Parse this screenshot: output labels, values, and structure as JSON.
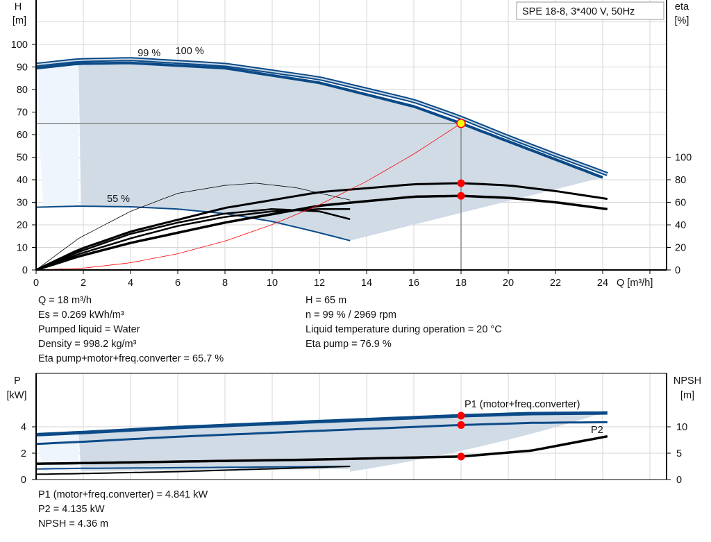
{
  "legend_box": "SPE 18-8, 3*400 V, 50Hz",
  "colors": {
    "curve_blue": "#0b4a87",
    "area": "#d0dbe6",
    "area_light": "#eef5fc",
    "eff_black": "#000000",
    "system_red": "#ff0000",
    "duty_point": "#ffff00",
    "grid": "#d4d4d4"
  },
  "chart_data": [
    {
      "type": "line",
      "title": "",
      "xlabel": "Q [m³/h]",
      "ylabel": "H\n[m]",
      "ylabel_right": "eta\n[%]",
      "xlim": [
        0,
        26
      ],
      "xticks": [
        0,
        2,
        4,
        6,
        8,
        10,
        12,
        14,
        16,
        18,
        20,
        22,
        24
      ],
      "ylim": [
        0,
        120
      ],
      "yticks": [
        0,
        10,
        20,
        30,
        40,
        50,
        60,
        70,
        80,
        90,
        100
      ],
      "ylim_right": [
        0,
        240
      ],
      "yticks_right": [
        0,
        20,
        40,
        60,
        80,
        100
      ],
      "grid": true,
      "axis_labels": {
        "h": "H",
        "h_unit": "[m]",
        "eta": "eta",
        "eta_unit": "[%]",
        "q": "Q [m³/h]"
      },
      "series": [
        {
          "name": "100 %",
          "axis": "H",
          "x": [
            0,
            1.8,
            4,
            8,
            12,
            16,
            18,
            20,
            22,
            24.2
          ],
          "y": [
            91,
            93,
            93.5,
            91,
            85,
            75,
            67.5,
            59,
            51,
            42.5
          ]
        },
        {
          "name": "99 %",
          "axis": "H",
          "x": [
            0,
            1.8,
            4,
            8,
            12,
            16,
            18,
            20,
            22,
            24
          ],
          "y": [
            89.5,
            91.5,
            91.8,
            89.5,
            83,
            72.5,
            65,
            57,
            49,
            41
          ]
        },
        {
          "name": "55 %",
          "axis": "H",
          "x": [
            0,
            1.8,
            4,
            6,
            8,
            10,
            12,
            13.3
          ],
          "y": [
            27.8,
            28.3,
            28,
            27,
            25,
            21.5,
            16.5,
            13
          ]
        },
        {
          "axis": "eta",
          "x": [
            0,
            1.8,
            4,
            8,
            12,
            16,
            18,
            20,
            22,
            24.2
          ],
          "y": [
            0,
            18,
            34,
            55,
            69,
            76,
            77,
            75,
            70,
            63
          ]
        },
        {
          "axis": "eta",
          "x": [
            0,
            1.8,
            4,
            8,
            12,
            16,
            18,
            20,
            22,
            24.2
          ],
          "y": [
            0,
            12,
            24,
            42,
            57,
            65,
            65.7,
            64,
            60,
            54
          ]
        },
        {
          "axis": "eta",
          "x": [
            0,
            1.8,
            4,
            6,
            8,
            9.3,
            11,
            13.3
          ],
          "y": [
            0,
            28,
            52,
            68,
            75,
            77,
            73,
            62
          ]
        },
        {
          "axis": "eta",
          "x": [
            0,
            1.8,
            4,
            6,
            8,
            10,
            12,
            13.3
          ],
          "y": [
            0,
            16,
            32,
            42,
            50,
            54,
            52,
            45
          ]
        },
        {
          "axis": "eta",
          "x": [
            0,
            1.8,
            4,
            6,
            8,
            10,
            12,
            13.3
          ],
          "y": [
            0,
            14,
            28,
            39,
            47,
            52,
            54,
            54
          ]
        },
        {
          "name": "system",
          "axis": "H",
          "x": [
            0,
            2,
            4,
            6,
            8,
            10,
            12,
            14,
            16,
            18
          ],
          "y": [
            0,
            0.8,
            3.2,
            7.2,
            12.8,
            20.1,
            28.9,
            39.3,
            51.4,
            65
          ]
        }
      ],
      "points": [
        {
          "label": "duty",
          "x": 18,
          "y": 65,
          "axis": "H"
        },
        {
          "x": 18,
          "y": 76.9,
          "axis": "eta"
        },
        {
          "x": 18,
          "y": 65.7,
          "axis": "eta"
        }
      ]
    },
    {
      "type": "line",
      "title": "",
      "ylabel": "P\n[kW]",
      "ylabel_right": "NPSH\n[m]",
      "xlim": [
        0,
        26
      ],
      "ylim": [
        0,
        8
      ],
      "yticks": [
        0,
        2,
        4
      ],
      "ylim_right": [
        0,
        21
      ],
      "yticks_right": [
        0,
        5,
        10
      ],
      "grid": true,
      "axis_labels": {
        "p": "P",
        "p_unit": "[kW]",
        "npsh": "NPSH",
        "npsh_unit": "[m]"
      },
      "series": [
        {
          "name": "P1 (motor+freq.converter)",
          "axis": "P",
          "x": [
            0,
            1.8,
            6,
            12,
            18,
            21,
            24.2
          ],
          "y": [
            3.4,
            3.55,
            3.95,
            4.4,
            4.84,
            5.0,
            5.05
          ]
        },
        {
          "name": "P2",
          "axis": "P",
          "x": [
            0,
            1.8,
            6,
            12,
            18,
            21,
            24.2
          ],
          "y": [
            2.7,
            2.85,
            3.25,
            3.7,
            4.135,
            4.3,
            4.35
          ]
        },
        {
          "axis": "NPSH",
          "x": [
            0,
            1.8,
            6,
            12,
            18,
            21,
            24.2
          ],
          "y": [
            3.0,
            3.1,
            3.4,
            3.8,
            4.36,
            5.5,
            8.2
          ]
        },
        {
          "axis": "P",
          "x": [
            0,
            1.8,
            6,
            13.3
          ],
          "y": [
            0.8,
            0.85,
            0.9,
            1.0
          ]
        },
        {
          "axis": "P",
          "x": [
            0,
            1.8,
            6,
            13.3
          ],
          "y": [
            0.4,
            0.45,
            0.6,
            1.0
          ]
        }
      ],
      "points": [
        {
          "x": 18,
          "y": 4.841,
          "axis": "P"
        },
        {
          "x": 18,
          "y": 4.135,
          "axis": "P"
        },
        {
          "x": 18,
          "y": 4.36,
          "axis": "NPSH"
        }
      ]
    }
  ],
  "info_top_left": [
    "Q = 18 m³/h",
    "Es = 0.269 kWh/m³",
    "Pumped liquid = Water",
    "Density = 998.2 kg/m³",
    "Eta pump+motor+freq.converter = 65.7 %"
  ],
  "info_top_right": [
    "H = 65 m",
    "n = 99 % / 2969 rpm",
    "Liquid temperature during operation = 20 °C",
    "Eta pump = 76.9 %"
  ],
  "info_bottom": [
    "P1 (motor+freq.converter) = 4.841 kW",
    "P2 = 4.135 kW",
    "NPSH = 4.36 m"
  ]
}
